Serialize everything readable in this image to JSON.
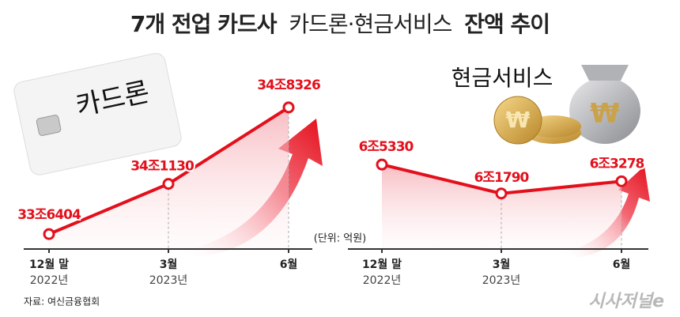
{
  "title": [
    "7개 전업 카드사",
    "카드론·현금서비스",
    "잔액 추이"
  ],
  "unit": "(단위: 억원)",
  "source": "자료: 여신금융협회",
  "logo": "시사저널e",
  "chart_data": [
    {
      "type": "line",
      "label": "카드론",
      "categories": [
        "12월 말",
        "3월",
        "6월"
      ],
      "years": [
        "2022년",
        "2023년",
        null
      ],
      "values": [
        336404,
        341130,
        348326
      ],
      "value_labels": [
        "33조6404",
        "34조1130",
        "34조8326"
      ],
      "color": "#e3101c",
      "ylim": [
        335000,
        351000
      ]
    },
    {
      "type": "line",
      "label": "현금서비스",
      "categories": [
        "12월 말",
        "3월",
        "6월"
      ],
      "years": [
        "2022년",
        "2023년",
        null
      ],
      "values": [
        65330,
        61790,
        63278
      ],
      "value_labels": [
        "6조5330",
        "6조1790",
        "6조3278"
      ],
      "color": "#e3101c",
      "ylim": [
        55000,
        69500
      ]
    }
  ]
}
